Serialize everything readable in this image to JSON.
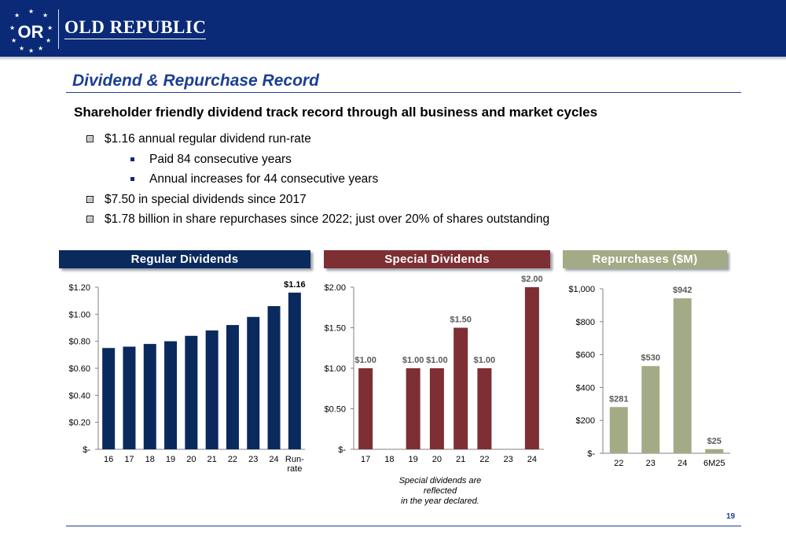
{
  "header": {
    "brand_name": "OLD REPUBLIC",
    "logo_monogram": "OR",
    "bg_color": "#0a2a78"
  },
  "title": "Dividend & Repurchase Record",
  "subtitle": "Shareholder friendly dividend track record through all business and market cycles",
  "bullets": [
    {
      "level": 1,
      "text": "$1.16 annual regular dividend run-rate"
    },
    {
      "level": 2,
      "text": "Paid 84 consecutive years"
    },
    {
      "level": 2,
      "text": "Annual increases for 44 consecutive years"
    },
    {
      "level": 1,
      "text": "$7.50 in special dividends since 2017"
    },
    {
      "level": 1,
      "text": "$1.78 billion in share repurchases since 2022; just over 20% of shares outstanding"
    }
  ],
  "panels": {
    "regular": {
      "label": "Regular Dividends",
      "color": "#0a2a5e"
    },
    "special": {
      "label": "Special Dividends",
      "color": "#7e2f33"
    },
    "repurchases": {
      "label": "Repurchases ($M)",
      "color": "#a3ab86"
    }
  },
  "footnote": {
    "line1": "Special dividends are reflected",
    "line2": "in the year declared."
  },
  "page_number": "19",
  "chart_data": [
    {
      "type": "bar",
      "title": "Regular Dividends",
      "categories": [
        "16",
        "17",
        "18",
        "19",
        "20",
        "21",
        "22",
        "23",
        "24",
        "Run-rate"
      ],
      "category_labels": [
        [
          "16"
        ],
        [
          "17"
        ],
        [
          "18"
        ],
        [
          "19"
        ],
        [
          "20"
        ],
        [
          "21"
        ],
        [
          "22"
        ],
        [
          "23"
        ],
        [
          "24"
        ],
        [
          "Run-",
          "rate"
        ]
      ],
      "values": [
        0.75,
        0.76,
        0.78,
        0.8,
        0.84,
        0.88,
        0.92,
        0.98,
        1.06,
        1.16
      ],
      "data_labels": [
        "",
        "",
        "",
        "",
        "",
        "",
        "",
        "",
        "",
        "$1.16"
      ],
      "yticks": [
        0,
        0.2,
        0.4,
        0.6,
        0.8,
        1.0,
        1.2
      ],
      "ytick_labels": [
        "$-",
        "$0.20",
        "$0.40",
        "$0.60",
        "$0.80",
        "$1.00",
        "$1.20"
      ],
      "ylim": [
        0,
        1.2
      ],
      "color": "#0a2a5e",
      "grid": false
    },
    {
      "type": "bar",
      "title": "Special Dividends",
      "categories": [
        "17",
        "18",
        "19",
        "20",
        "21",
        "22",
        "23",
        "24"
      ],
      "category_labels": [
        [
          "17"
        ],
        [
          "18"
        ],
        [
          "19"
        ],
        [
          "20"
        ],
        [
          "21"
        ],
        [
          "22"
        ],
        [
          "23"
        ],
        [
          "24"
        ]
      ],
      "values": [
        1.0,
        0,
        1.0,
        1.0,
        1.5,
        1.0,
        0,
        2.0
      ],
      "data_labels": [
        "$1.00",
        "",
        "$1.00",
        "$1.00",
        "$1.50",
        "$1.00",
        "",
        "$2.00"
      ],
      "yticks": [
        0,
        0.5,
        1.0,
        1.5,
        2.0
      ],
      "ytick_labels": [
        "$-",
        "$0.50",
        "$1.00",
        "$1.50",
        "$2.00"
      ],
      "ylim": [
        0,
        2.0
      ],
      "color": "#7e2f33",
      "grid": false
    },
    {
      "type": "bar",
      "title": "Repurchases ($M)",
      "categories": [
        "22",
        "23",
        "24",
        "6M25"
      ],
      "category_labels": [
        [
          "22"
        ],
        [
          "23"
        ],
        [
          "24"
        ],
        [
          "6M25"
        ]
      ],
      "values": [
        281,
        530,
        942,
        25
      ],
      "data_labels": [
        "$281",
        "$530",
        "$942",
        "$25"
      ],
      "yticks": [
        0,
        200,
        400,
        600,
        800,
        1000
      ],
      "ytick_labels": [
        "$-",
        "$200",
        "$400",
        "$600",
        "$800",
        "$1,000"
      ],
      "ylim": [
        0,
        1000
      ],
      "color": "#a3ab86",
      "grid": false
    }
  ]
}
